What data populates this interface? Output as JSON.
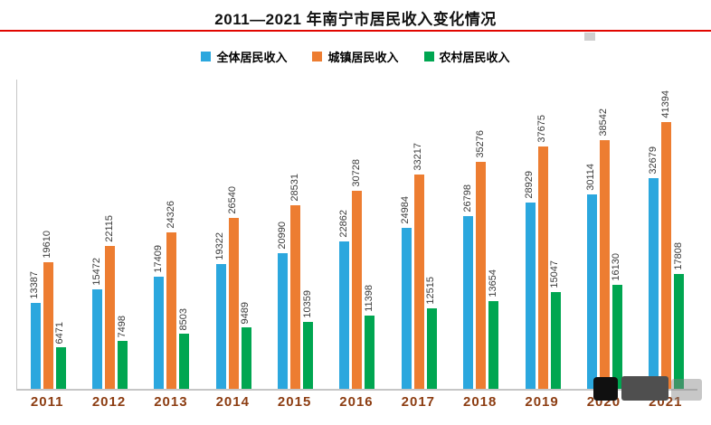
{
  "title": "2011—2021 年南宁市居民收入变化情况",
  "chart_data": {
    "type": "bar",
    "title": "2011—2021 年南宁市居民收入变化情况",
    "categories": [
      "2011",
      "2012",
      "2013",
      "2014",
      "2015",
      "2016",
      "2017",
      "2018",
      "2019",
      "2020",
      "2021"
    ],
    "series": [
      {
        "name": "全体居民收入",
        "key": "all",
        "color": "#2ba7de",
        "values": [
          13387,
          15472,
          17409,
          19322,
          20990,
          22862,
          24984,
          26798,
          28929,
          30114,
          32679
        ]
      },
      {
        "name": "城镇居民收入",
        "key": "urban",
        "color": "#ed7d31",
        "values": [
          19610,
          22115,
          24326,
          26540,
          28531,
          30728,
          33217,
          35276,
          37675,
          38542,
          41394
        ]
      },
      {
        "name": "农村居民收入",
        "key": "rural",
        "color": "#00a651",
        "values": [
          6471,
          7498,
          8503,
          9489,
          10359,
          11398,
          12515,
          13654,
          15047,
          16130,
          17808
        ]
      }
    ],
    "xlabel": "",
    "ylabel": "",
    "ylim": [
      0,
      48000
    ],
    "grid": false,
    "legend_position": "top",
    "data_labels": "rotated-vertical-above-bars"
  },
  "styles": {
    "title_divider_color": "#e10600",
    "axis_color": "#c6c6c6",
    "x_tick_color": "#8c3d12",
    "data_label_color": "#3a3a3a"
  }
}
